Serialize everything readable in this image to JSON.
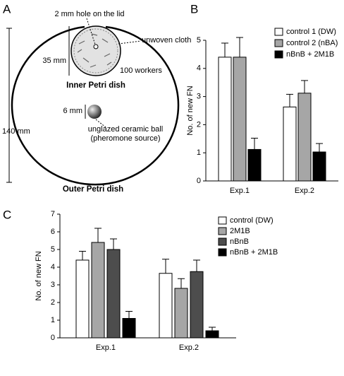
{
  "panel_labels": [
    "A",
    "B",
    "C"
  ],
  "diagram": {
    "hole_label": "2 mm hole on the lid",
    "cloth_label": "unwoven cloth",
    "inner_size_label": "35 mm",
    "workers_label": "100 workers",
    "inner_dish_label": "Inner Petri dish",
    "ball_size_label": "6 mm",
    "ball_label_1": "unglazed ceramic ball",
    "ball_label_2": "(pheromone source)",
    "outer_size_label": "140 mm",
    "outer_dish_label": "Outer Petri dish"
  },
  "chart_data": [
    {
      "type": "bar",
      "y_label": "No. of new FN",
      "categories": [
        "Exp.1",
        "Exp.2"
      ],
      "series": [
        {
          "name": "control 1 (DW)",
          "color": "#ffffff",
          "values": [
            4.4,
            2.63
          ],
          "errors": [
            0.5,
            0.45
          ]
        },
        {
          "name": "control 2 (nBA)",
          "color": "#a6a6a6",
          "values": [
            4.4,
            3.12
          ],
          "errors": [
            0.7,
            0.45
          ]
        },
        {
          "name": "nBnB + 2M1B",
          "color": "#000000",
          "values": [
            1.12,
            1.03
          ],
          "errors": [
            0.4,
            0.3
          ]
        }
      ],
      "ylim": [
        0,
        5
      ],
      "yticks": [
        0,
        1,
        2,
        3,
        4,
        5
      ],
      "legend": "top-right"
    },
    {
      "type": "bar",
      "y_label": "No. of new FN",
      "categories": [
        "Exp.1",
        "Exp.2"
      ],
      "series": [
        {
          "name": "control (DW)",
          "color": "#ffffff",
          "values": [
            4.4,
            3.65
          ],
          "errors": [
            0.5,
            0.8
          ]
        },
        {
          "name": "2M1B",
          "color": "#a6a6a6",
          "values": [
            5.4,
            2.8
          ],
          "errors": [
            0.8,
            0.55
          ]
        },
        {
          "name": "nBnB",
          "color": "#4d4d4d",
          "values": [
            5.0,
            3.75
          ],
          "errors": [
            0.6,
            0.65
          ]
        },
        {
          "name": "nBnB + 2M1B",
          "color": "#000000",
          "values": [
            1.1,
            0.4
          ],
          "errors": [
            0.4,
            0.2
          ]
        }
      ],
      "ylim": [
        0,
        7
      ],
      "yticks": [
        0,
        1,
        2,
        3,
        4,
        5,
        6,
        7
      ],
      "legend": "top-right"
    }
  ]
}
